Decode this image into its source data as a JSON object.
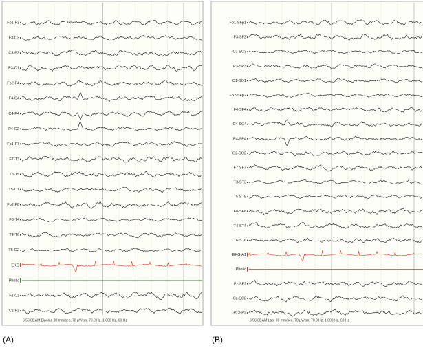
{
  "panels": [
    {
      "label": "(A)",
      "channels": [
        "Fp1-F3",
        "F3-C3",
        "C3-P3",
        "P3-O1",
        "Fp2-F4",
        "F4-C4",
        "C4-P4",
        "P4-O2",
        "Fp1-F7",
        "F7-T3",
        "T3-T5",
        "T5-O1",
        "Fp2-F8",
        "F8-T4",
        "T4-T6",
        "T6-O2",
        "EKG",
        "Photic",
        "Fz-Cz",
        "Cz-Pz"
      ],
      "footer": "6:56:08 AM Bipolar, 30 mm/sec, 70 µV/cm, 70.0 Hz, 1.000 Hz, 60 Hz"
    },
    {
      "label": "(B)",
      "channels": [
        "Fp1-SFp1",
        "F3-SF3",
        "C3-SC3",
        "P3-SP3",
        "O1-SO1",
        "Fp2-SFp2",
        "F4-SF4",
        "C4-SC4",
        "P4-SP4",
        "O2-SO2",
        "F7-SF7",
        "T3-ST3",
        "T5-ST5",
        "F8-SF8",
        "T4-ST4",
        "T6-ST6",
        "EKG-A1",
        "Photic",
        "Fz-SF2",
        "Cz-SC2",
        "Pz-SP2"
      ],
      "footer": "6:56:08 AM Lap, 30 mm/sec, 70 µV/cm, 70.0 Hz, 1.000 Hz, 60 Hz"
    }
  ]
}
